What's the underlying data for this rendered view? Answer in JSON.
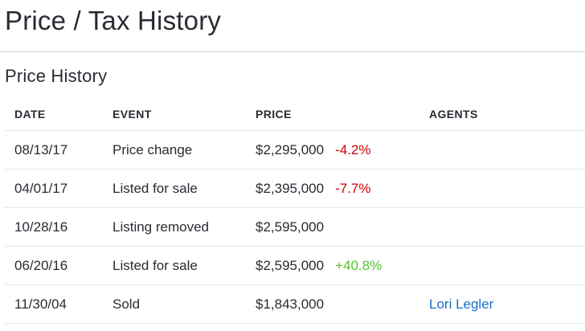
{
  "page": {
    "title": "Price / Tax History"
  },
  "price_history": {
    "section_title": "Price History",
    "columns": {
      "date": "DATE",
      "event": "EVENT",
      "price": "PRICE",
      "agents": "AGENTS"
    },
    "rows": [
      {
        "date": "08/13/17",
        "event": "Price change",
        "price": "$2,295,000",
        "change": "-4.2%",
        "agent": ""
      },
      {
        "date": "04/01/17",
        "event": "Listed for sale",
        "price": "$2,395,000",
        "change": "-7.7%",
        "agent": ""
      },
      {
        "date": "10/28/16",
        "event": "Listing removed",
        "price": "$2,595,000",
        "change": "",
        "agent": ""
      },
      {
        "date": "06/20/16",
        "event": "Listed for sale",
        "price": "$2,595,000",
        "change": "+40.8%",
        "agent": ""
      },
      {
        "date": "11/30/04",
        "event": "Sold",
        "price": "$1,843,000",
        "change": "",
        "agent": "Lori Legler"
      }
    ]
  },
  "colors": {
    "negative_change": "#cc0000",
    "positive_change": "#55c12e",
    "link": "#1a6fc9",
    "text": "#2a2a33"
  }
}
